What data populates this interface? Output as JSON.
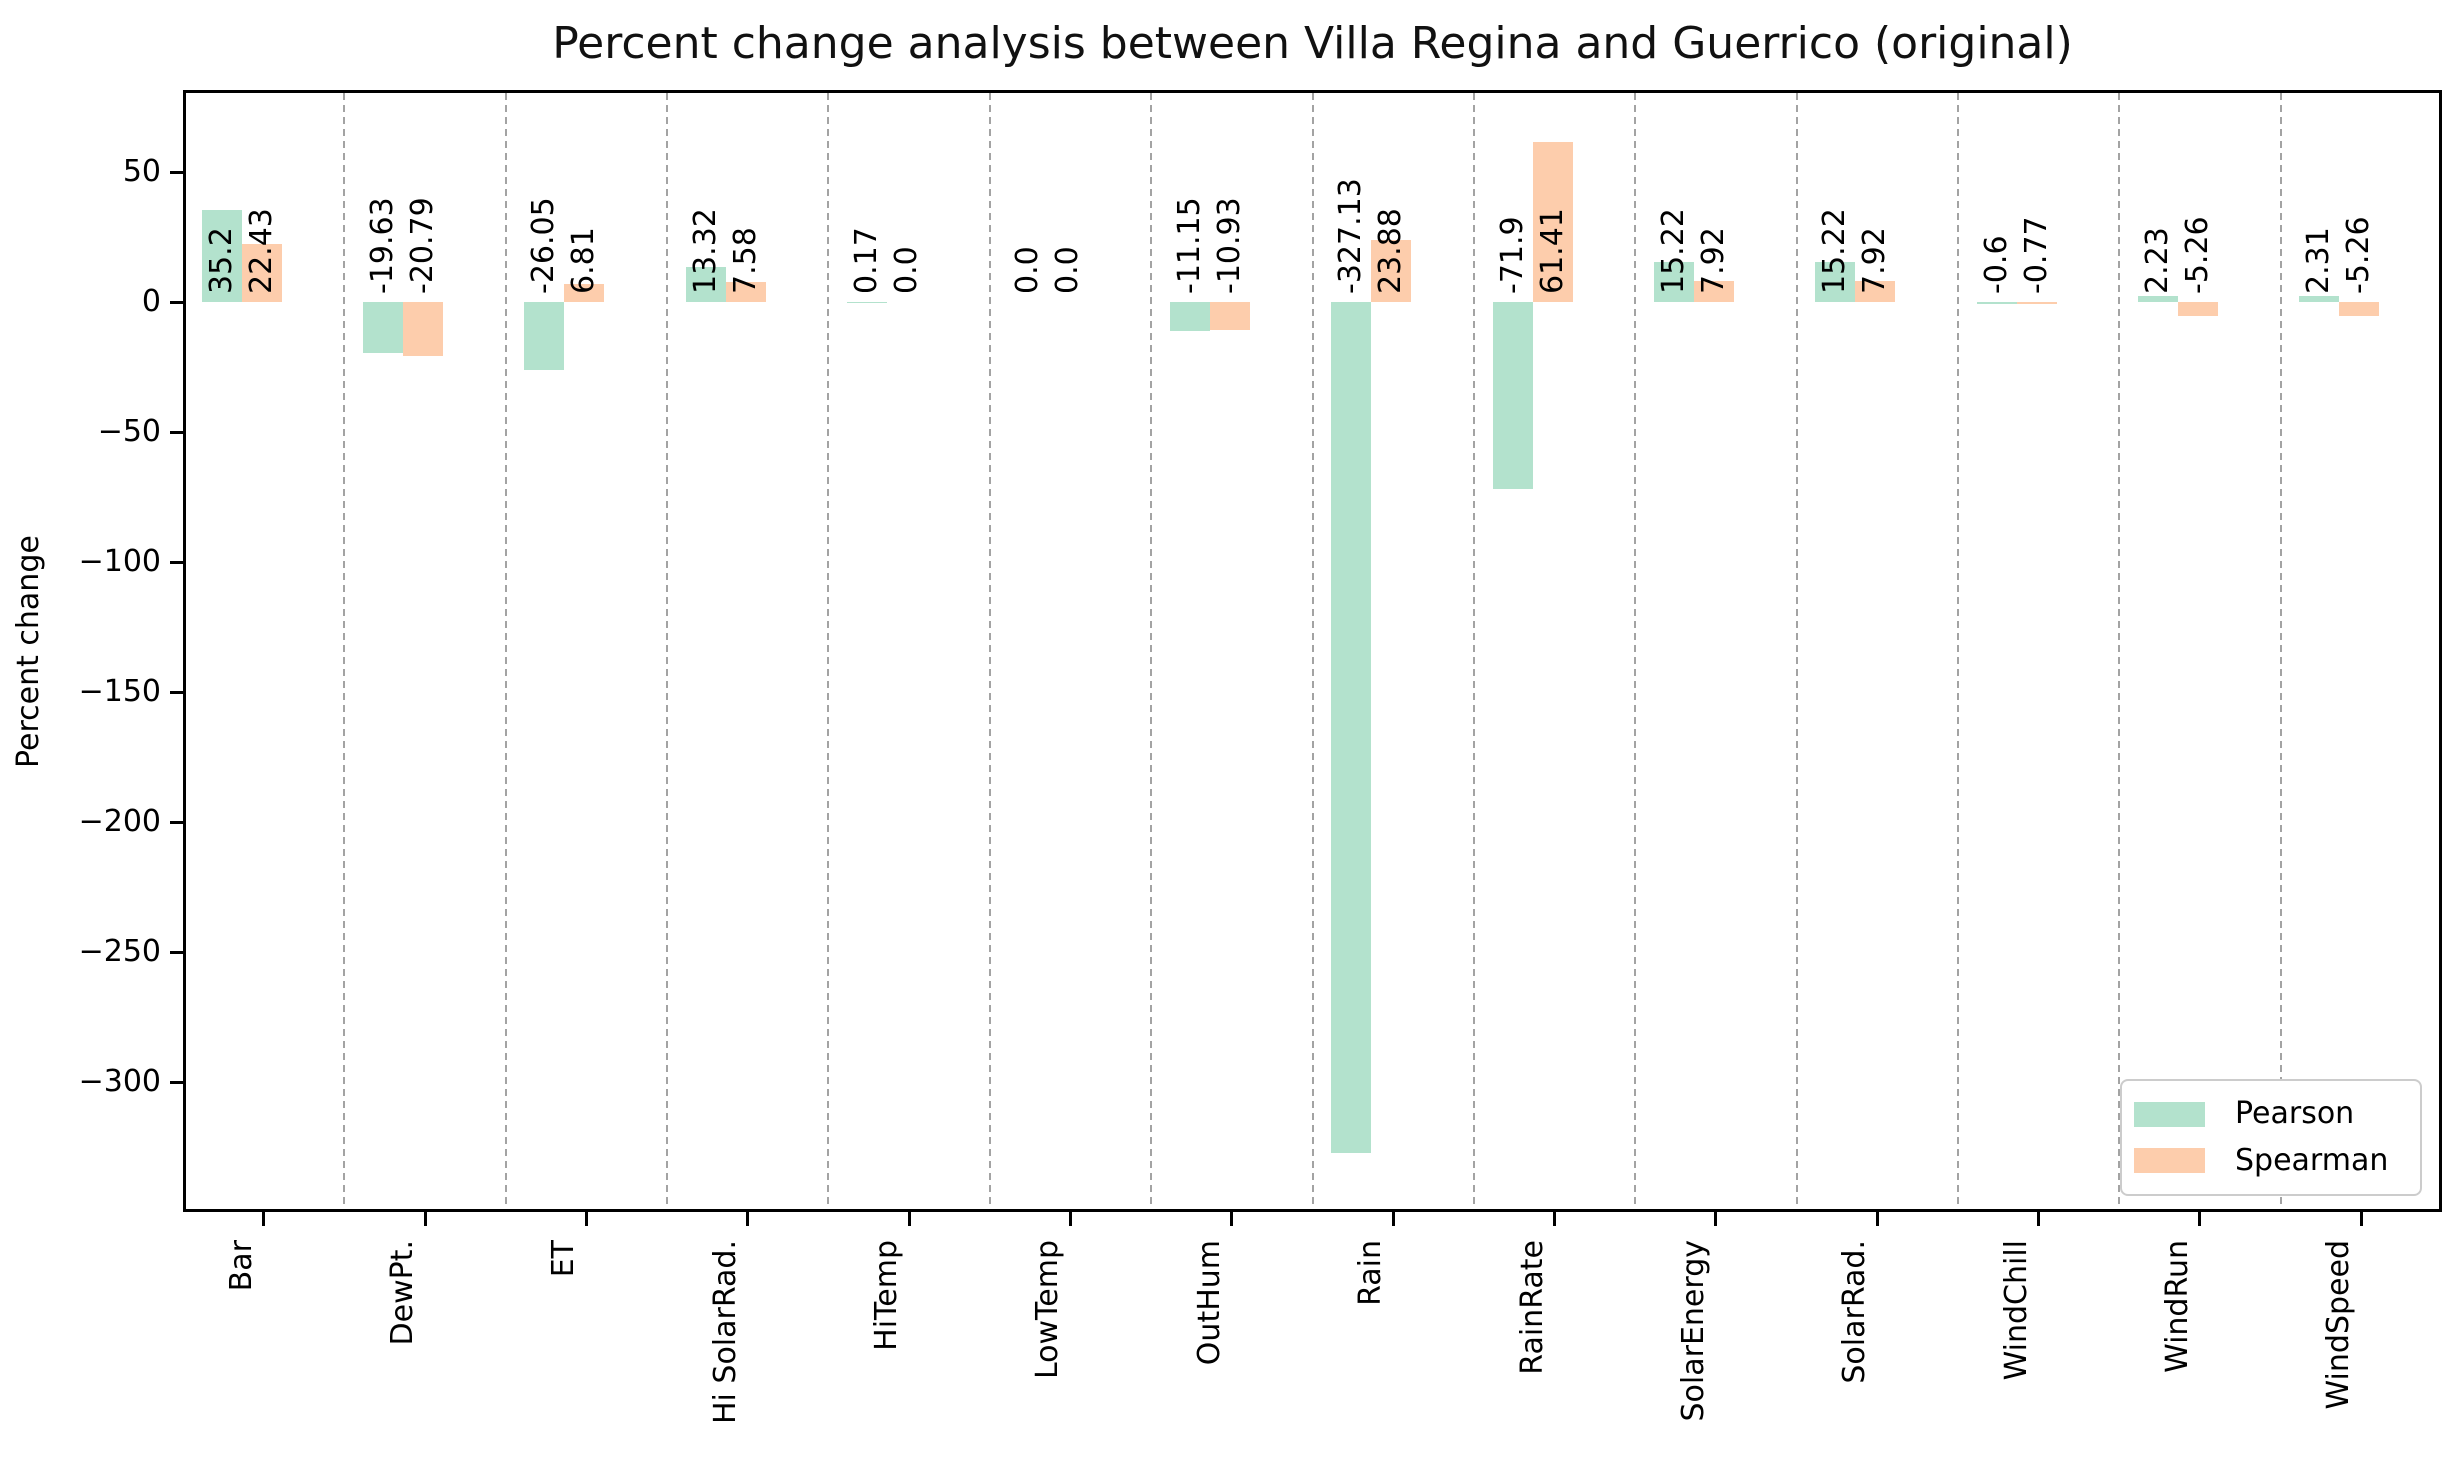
{
  "chart_data": {
    "type": "bar",
    "title": "Percent change analysis between Villa Regina and Guerrico (original)",
    "xlabel": "",
    "ylabel": "Percent change",
    "categories": [
      "Bar",
      "DewPt.",
      "ET",
      "Hi SolarRad.",
      "HiTemp",
      "LowTemp",
      "OutHum",
      "Rain",
      "RainRate",
      "SolarEnergy",
      "SolarRad.",
      "WindChill",
      "WindRun",
      "WindSpeed"
    ],
    "series": [
      {
        "name": "Pearson",
        "color": "#b3e2cd",
        "values": [
          35.2,
          -19.63,
          -26.05,
          13.32,
          0.17,
          0.0,
          -11.15,
          -327.13,
          -71.9,
          15.22,
          15.22,
          -0.6,
          2.23,
          2.31
        ],
        "labels": [
          "35.2",
          "-19.63",
          "-26.05",
          "13.32",
          "0.17",
          "0.0",
          "-11.15",
          "-327.13",
          "-71.9",
          "15.22",
          "15.22",
          "-0.6",
          "2.23",
          "2.31"
        ]
      },
      {
        "name": "Spearman",
        "color": "#fdcdac",
        "values": [
          22.43,
          -20.79,
          6.81,
          7.58,
          0.0,
          0.0,
          -10.93,
          23.88,
          61.41,
          7.92,
          7.92,
          -0.77,
          -5.26,
          -5.26
        ],
        "labels": [
          "22.43",
          "-20.79",
          "6.81",
          "7.58",
          "0.0",
          "0.0",
          "-10.93",
          "23.88",
          "61.41",
          "7.92",
          "7.92",
          "-0.77",
          "-5.26",
          "-5.26"
        ]
      }
    ],
    "yticks": [
      50,
      0,
      -50,
      -100,
      -150,
      -200,
      -250,
      -300
    ],
    "ylim": [
      -350,
      81.5
    ],
    "grid": "vertical dashed separators between categories",
    "legend": {
      "position": "lower right",
      "entries": [
        "Pearson",
        "Spearman"
      ]
    }
  }
}
